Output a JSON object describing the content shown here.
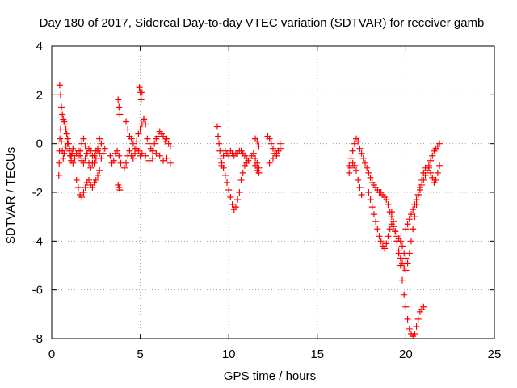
{
  "chart_data": {
    "type": "scatter",
    "title": "Day 180 of 2017, Sidereal Day-to-day VTEC variation (SDTVAR) for receiver gamb",
    "xlabel": "GPS time / hours",
    "ylabel": "SDTVAR / TECUs",
    "xlim": [
      0,
      25
    ],
    "ylim": [
      -8,
      4
    ],
    "xticks": [
      0,
      5,
      10,
      15,
      20,
      25
    ],
    "yticks": [
      -8,
      -6,
      -4,
      -2,
      0,
      2,
      4
    ],
    "grid": true,
    "marker": "+",
    "series": [
      {
        "name": "SDTVAR",
        "color": "#ff0000",
        "x": [
          0.45,
          0.5,
          0.55,
          0.6,
          0.65,
          0.7,
          0.75,
          0.8,
          0.85,
          0.9,
          0.95,
          1.0,
          1.05,
          1.1,
          1.15,
          1.2,
          0.4,
          0.42,
          0.44,
          0.46,
          0.5,
          0.55,
          0.6,
          0.65,
          0.7,
          0.8,
          0.9,
          1.0,
          1.1,
          1.2,
          1.3,
          1.4,
          1.5,
          1.6,
          1.7,
          1.8,
          1.9,
          2.0,
          2.1,
          2.2,
          2.3,
          2.4,
          2.5,
          2.6,
          2.7,
          2.8,
          1.4,
          1.5,
          1.6,
          1.7,
          1.8,
          1.9,
          2.0,
          2.1,
          2.2,
          2.3,
          2.4,
          2.5,
          2.6,
          2.7,
          1.5,
          1.6,
          1.7,
          1.8,
          1.9,
          2.0,
          2.1,
          2.2,
          2.3,
          2.4,
          2.5,
          2.6,
          2.7,
          2.8,
          2.9,
          3.0,
          3.3,
          3.4,
          3.5,
          3.6,
          3.7,
          3.8,
          3.9,
          3.75,
          3.8,
          3.85,
          3.75,
          3.8,
          3.85,
          4.1,
          4.2,
          4.3,
          4.4,
          4.5,
          4.6,
          4.7,
          4.8,
          4.9,
          5.0,
          5.1,
          4.2,
          4.3,
          4.4,
          4.5,
          4.6,
          4.7,
          4.8,
          4.9,
          5.0,
          5.1,
          5.2,
          4.95,
          5.0,
          5.05,
          5.1,
          5.2,
          5.3,
          5.4,
          5.5,
          5.6,
          5.7,
          5.8,
          5.9,
          6.0,
          6.1,
          6.2,
          6.3,
          6.4,
          6.5,
          6.6,
          6.7,
          5.3,
          5.5,
          5.7,
          5.9,
          6.1,
          6.3,
          6.5,
          6.7,
          9.35,
          9.4,
          9.45,
          9.5,
          9.55,
          9.6,
          9.7,
          9.8,
          9.9,
          10.0,
          10.1,
          10.2,
          10.3,
          10.4,
          10.5,
          10.6,
          10.7,
          10.8,
          10.9,
          11.0,
          9.6,
          9.7,
          9.8,
          9.9,
          10.0,
          10.1,
          10.2,
          10.3,
          10.4,
          10.5,
          10.6,
          10.7,
          10.8,
          10.9,
          11.0,
          11.1,
          11.2,
          11.3,
          11.4,
          11.5,
          11.6,
          11.7,
          11.5,
          11.6,
          11.7,
          11.5,
          11.6,
          11.7,
          12.2,
          12.3,
          12.4,
          12.5,
          12.6,
          12.7,
          12.8,
          12.9,
          12.3,
          12.5,
          12.7,
          12.9,
          16.8,
          16.9,
          17.0,
          17.1,
          17.2,
          17.3,
          17.4,
          17.5,
          16.8,
          16.9,
          17.0,
          17.1,
          17.2,
          17.3,
          17.4,
          17.5,
          17.6,
          17.7,
          17.8,
          17.9,
          18.0,
          18.1,
          18.2,
          18.3,
          18.4,
          18.5,
          18.6,
          18.7,
          18.8,
          18.9,
          19.0,
          19.1,
          19.2,
          17.9,
          18.0,
          18.1,
          18.2,
          18.3,
          18.4,
          18.5,
          18.6,
          18.7,
          18.8,
          18.9,
          19.0,
          19.1,
          19.2,
          19.3,
          19.4,
          19.5,
          19.6,
          19.7,
          19.8,
          19.9,
          20.0,
          19.2,
          19.3,
          19.4,
          19.5,
          19.6,
          19.7,
          19.8,
          19.9,
          20.0,
          20.1,
          20.2,
          20.3,
          20.4,
          20.5,
          20.6,
          20.7,
          20.8,
          20.9,
          21.0,
          21.1,
          19.5,
          19.6,
          19.7,
          19.8,
          19.9,
          20.0,
          20.1,
          20.2,
          20.3,
          20.4,
          20.5,
          20.6,
          20.7,
          20.8,
          20.9,
          21.0,
          20.0,
          20.1,
          20.2,
          20.3,
          20.4,
          20.5,
          20.6,
          20.7,
          20.8,
          20.9,
          21.0,
          21.1,
          21.2,
          21.3,
          21.4,
          21.5,
          21.6,
          21.7,
          21.8,
          21.9,
          21.3,
          21.4,
          21.5,
          21.6,
          21.7,
          21.8,
          21.9
        ],
        "y": [
          2.4,
          2.0,
          1.5,
          1.2,
          1.0,
          0.9,
          0.8,
          0.6,
          0.4,
          0.2,
          0.0,
          -0.3,
          -0.5,
          -0.7,
          -0.4,
          -0.2,
          -1.3,
          -0.8,
          -0.3,
          0.2,
          0.6,
          0.1,
          -0.3,
          -0.6,
          -0.4,
          -0.1,
          0.0,
          -0.2,
          -0.5,
          -0.8,
          -0.6,
          -0.4,
          -0.3,
          -0.5,
          -0.7,
          -0.8,
          -0.6,
          -0.4,
          -0.2,
          -0.3,
          -0.5,
          -0.8,
          -0.6,
          -0.3,
          0.2,
          0.0,
          -1.5,
          -1.8,
          -2.1,
          -2.2,
          -2.0,
          -1.8,
          -1.6,
          -1.5,
          -1.7,
          -1.8,
          -1.6,
          -1.5,
          -1.3,
          -1.1,
          -0.5,
          -0.3,
          0.0,
          0.2,
          -0.1,
          -0.4,
          -0.8,
          -1.0,
          -0.8,
          -0.5,
          -0.3,
          -0.2,
          -0.4,
          -0.6,
          -0.4,
          -0.2,
          -0.5,
          -0.8,
          -0.7,
          -0.4,
          -0.3,
          -0.5,
          -0.8,
          1.8,
          1.5,
          1.2,
          -1.7,
          -1.8,
          -1.9,
          -1.0,
          -0.8,
          -0.5,
          -0.3,
          -0.5,
          -0.6,
          -0.4,
          -0.2,
          -0.3,
          -0.5,
          -0.4,
          0.9,
          0.6,
          0.3,
          0.2,
          0.0,
          -0.2,
          0.1,
          0.4,
          0.6,
          0.8,
          1.0,
          2.3,
          2.1,
          1.8,
          2.1,
          1.0,
          0.8,
          0.2,
          0.0,
          -0.2,
          -0.3,
          0.0,
          0.2,
          0.3,
          0.5,
          0.4,
          0.3,
          0.1,
          0.2,
          0.0,
          -0.1,
          -0.5,
          -0.7,
          -0.6,
          -0.4,
          -0.5,
          -0.7,
          -0.6,
          -0.8,
          0.7,
          0.3,
          0.0,
          -0.3,
          -0.6,
          -0.9,
          -0.5,
          -0.3,
          -0.4,
          -0.5,
          -0.3,
          -0.4,
          -0.5,
          -0.4,
          -0.4,
          -0.3,
          -0.3,
          -0.4,
          -0.5,
          -0.6,
          -0.8,
          -1.0,
          -1.3,
          -1.6,
          -1.9,
          -2.2,
          -2.5,
          -2.7,
          -2.6,
          -2.3,
          -2.0,
          -1.5,
          -1.2,
          -0.9,
          -0.8,
          -0.7,
          -0.6,
          -0.5,
          -0.4,
          -0.6,
          -0.8,
          -1.0,
          0.2,
          0.1,
          -0.1,
          -0.9,
          -1.1,
          -1.2,
          0.3,
          0.2,
          0.0,
          -0.2,
          -0.4,
          -0.5,
          -0.3,
          0.0,
          -0.8,
          -0.6,
          -0.4,
          -0.2,
          -1.2,
          -1.0,
          -0.8,
          -0.9,
          -1.1,
          -1.5,
          -1.8,
          -2.1,
          -0.9,
          -0.6,
          -0.3,
          0.0,
          0.2,
          0.1,
          -0.2,
          -0.4,
          -0.6,
          -0.8,
          -1.0,
          -1.2,
          -1.4,
          -1.6,
          -1.7,
          -1.8,
          -1.9,
          -2.0,
          -2.0,
          -2.1,
          -2.2,
          -2.3,
          -2.5,
          -2.8,
          -3.0,
          -2.0,
          -2.3,
          -2.6,
          -2.9,
          -3.2,
          -3.5,
          -3.8,
          -4.0,
          -4.2,
          -4.3,
          -4.1,
          -3.8,
          -3.5,
          -3.3,
          -3.4,
          -3.6,
          -3.8,
          -3.9,
          -4.0,
          -4.2,
          -4.5,
          -4.7,
          -2.8,
          -3.2,
          -3.6,
          -4.0,
          -4.4,
          -4.7,
          -4.9,
          -5.1,
          -5.2,
          -4.9,
          -4.5,
          -4.0,
          -3.5,
          -3.0,
          -2.5,
          -2.1,
          -1.8,
          -1.5,
          -1.2,
          -1.0,
          -4.0,
          -4.5,
          -5.0,
          -5.6,
          -6.2,
          -6.7,
          -7.2,
          -7.6,
          -7.8,
          -7.9,
          -7.8,
          -7.5,
          -7.2,
          -6.9,
          -6.8,
          -6.7,
          -3.5,
          -3.3,
          -3.1,
          -2.9,
          -2.7,
          -2.5,
          -2.3,
          -2.1,
          -1.9,
          -1.7,
          -1.5,
          -1.3,
          -1.1,
          -0.9,
          -0.7,
          -0.5,
          -0.3,
          -0.2,
          -0.1,
          0.0,
          -1.0,
          -1.2,
          -1.4,
          -1.6,
          -1.5,
          -1.2,
          -0.9
        ]
      }
    ]
  }
}
